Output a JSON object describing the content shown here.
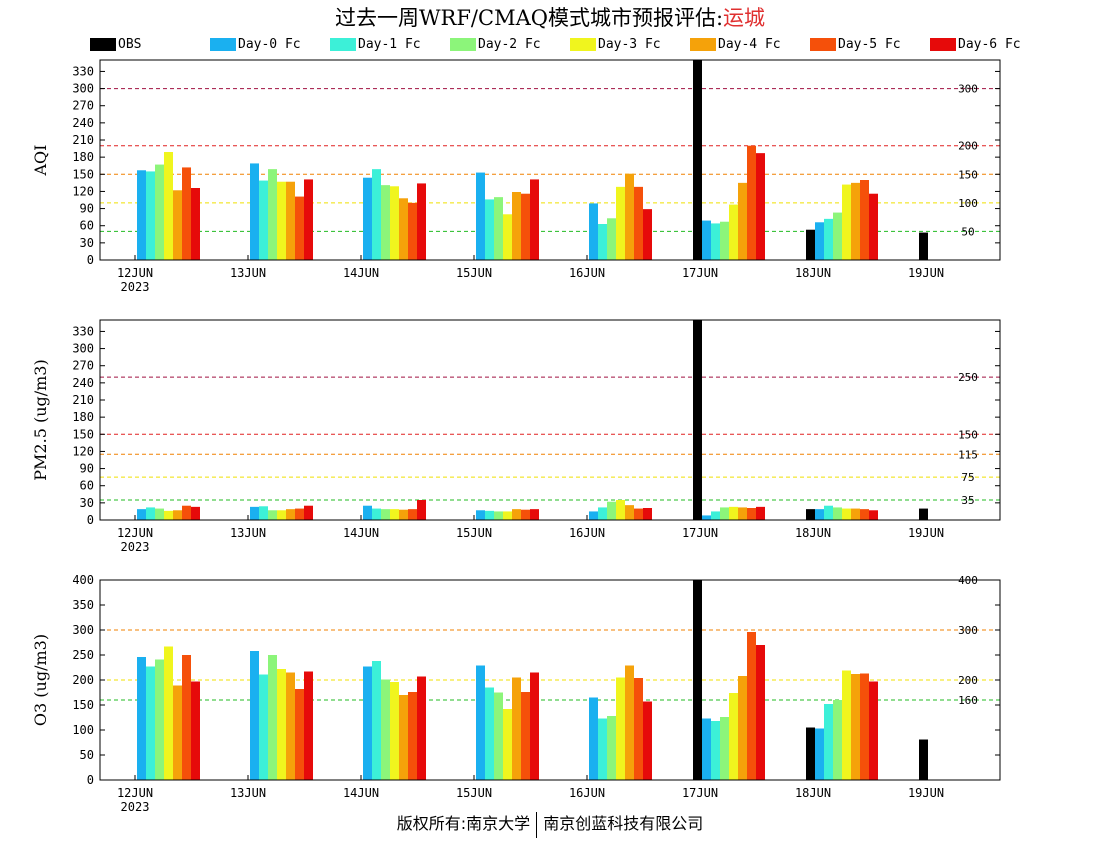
{
  "title": {
    "main": "过去一周WRF/CMAQ模式城市预报评估:",
    "city": "运城"
  },
  "footer": {
    "left": "版权所有:南京大学",
    "right": "南京创蓝科技有限公司"
  },
  "colors": {
    "OBS": "#000000",
    "Day-0 Fc": "#1ab0f0",
    "Day-1 Fc": "#3cf0d8",
    "Day-2 Fc": "#8cf57a",
    "Day-3 Fc": "#f0f51e",
    "Day-4 Fc": "#f5a20a",
    "Day-5 Fc": "#f5500a",
    "Day-6 Fc": "#e60a0a"
  },
  "chart_data": [
    {
      "type": "bar",
      "ylabel": "AQI",
      "ylim": [
        0,
        350
      ],
      "yticks": [
        0,
        30,
        60,
        90,
        120,
        150,
        180,
        210,
        240,
        270,
        300,
        330
      ],
      "categories": [
        "12JUN",
        "13JUN",
        "14JUN",
        "15JUN",
        "16JUN",
        "17JUN",
        "18JUN",
        "19JUN"
      ],
      "first_tick_sub": "2023",
      "thresholds": [
        {
          "value": 50,
          "label": "50",
          "color": "#22bb22"
        },
        {
          "value": 100,
          "label": "100",
          "color": "#f0e000"
        },
        {
          "value": 150,
          "label": "150",
          "color": "#f08000"
        },
        {
          "value": 200,
          "label": "200",
          "color": "#e02020"
        },
        {
          "value": 300,
          "label": "300",
          "color": "#a01040"
        }
      ],
      "series": [
        {
          "name": "OBS",
          "values": [
            null,
            null,
            null,
            null,
            null,
            350,
            53,
            48
          ]
        },
        {
          "name": "Day-0 Fc",
          "values": [
            157,
            169,
            144,
            153,
            99,
            69,
            66,
            null
          ]
        },
        {
          "name": "Day-1 Fc",
          "values": [
            155,
            139,
            159,
            106,
            63,
            64,
            72,
            null
          ]
        },
        {
          "name": "Day-2 Fc",
          "values": [
            167,
            159,
            131,
            110,
            73,
            67,
            83,
            null
          ]
        },
        {
          "name": "Day-3 Fc",
          "values": [
            189,
            137,
            129,
            80,
            128,
            97,
            132,
            null
          ]
        },
        {
          "name": "Day-4 Fc",
          "values": [
            122,
            137,
            108,
            119,
            151,
            135,
            135,
            null
          ]
        },
        {
          "name": "Day-5 Fc",
          "values": [
            162,
            111,
            100,
            116,
            128,
            200,
            140,
            null
          ]
        },
        {
          "name": "Day-6 Fc",
          "values": [
            126,
            141,
            134,
            141,
            89,
            187,
            116,
            null
          ]
        }
      ]
    },
    {
      "type": "bar",
      "ylabel": "PM2.5 (ug/m3)",
      "ylim": [
        0,
        350
      ],
      "yticks": [
        0,
        30,
        60,
        90,
        120,
        150,
        180,
        210,
        240,
        270,
        300,
        330
      ],
      "categories": [
        "12JUN",
        "13JUN",
        "14JUN",
        "15JUN",
        "16JUN",
        "17JUN",
        "18JUN",
        "19JUN"
      ],
      "first_tick_sub": "2023",
      "thresholds": [
        {
          "value": 35,
          "label": "35",
          "color": "#22bb22"
        },
        {
          "value": 75,
          "label": "75",
          "color": "#f0e000"
        },
        {
          "value": 115,
          "label": "115",
          "color": "#f08000"
        },
        {
          "value": 150,
          "label": "150",
          "color": "#e02020"
        },
        {
          "value": 250,
          "label": "250",
          "color": "#a01040"
        }
      ],
      "series": [
        {
          "name": "OBS",
          "values": [
            null,
            null,
            null,
            null,
            null,
            350,
            19,
            20
          ]
        },
        {
          "name": "Day-0 Fc",
          "values": [
            19,
            23,
            25,
            17,
            15,
            8,
            19,
            null
          ]
        },
        {
          "name": "Day-1 Fc",
          "values": [
            22,
            24,
            20,
            16,
            22,
            15,
            25,
            null
          ]
        },
        {
          "name": "Day-2 Fc",
          "values": [
            20,
            17,
            19,
            15,
            32,
            22,
            22,
            null
          ]
        },
        {
          "name": "Day-3 Fc",
          "values": [
            16,
            17,
            19,
            15,
            35,
            23,
            20,
            null
          ]
        },
        {
          "name": "Day-4 Fc",
          "values": [
            17,
            19,
            18,
            19,
            26,
            22,
            20,
            null
          ]
        },
        {
          "name": "Day-5 Fc",
          "values": [
            25,
            20,
            19,
            18,
            20,
            21,
            19,
            null
          ]
        },
        {
          "name": "Day-6 Fc",
          "values": [
            23,
            25,
            35,
            19,
            21,
            23,
            17,
            null
          ]
        }
      ]
    },
    {
      "type": "bar",
      "ylabel": "O3 (ug/m3)",
      "ylim": [
        0,
        400
      ],
      "yticks": [
        0,
        50,
        100,
        150,
        200,
        250,
        300,
        350,
        400
      ],
      "categories": [
        "12JUN",
        "13JUN",
        "14JUN",
        "15JUN",
        "16JUN",
        "17JUN",
        "18JUN",
        "19JUN"
      ],
      "first_tick_sub": "2023",
      "thresholds": [
        {
          "value": 160,
          "label": "160",
          "color": "#22bb22"
        },
        {
          "value": 200,
          "label": "200",
          "color": "#f0e000"
        },
        {
          "value": 300,
          "label": "300",
          "color": "#f08000"
        },
        {
          "value": 400,
          "label": "400",
          "color": "#e02020"
        }
      ],
      "series": [
        {
          "name": "OBS",
          "values": [
            null,
            null,
            null,
            null,
            null,
            400,
            105,
            81
          ]
        },
        {
          "name": "Day-0 Fc",
          "values": [
            246,
            258,
            227,
            229,
            165,
            123,
            103,
            null
          ]
        },
        {
          "name": "Day-1 Fc",
          "values": [
            227,
            211,
            238,
            185,
            123,
            118,
            152,
            null
          ]
        },
        {
          "name": "Day-2 Fc",
          "values": [
            241,
            250,
            201,
            175,
            128,
            126,
            160,
            null
          ]
        },
        {
          "name": "Day-3 Fc",
          "values": [
            267,
            222,
            196,
            142,
            205,
            174,
            219,
            null
          ]
        },
        {
          "name": "Day-4 Fc",
          "values": [
            189,
            215,
            170,
            205,
            229,
            208,
            212,
            null
          ]
        },
        {
          "name": "Day-5 Fc",
          "values": [
            250,
            182,
            176,
            176,
            204,
            296,
            213,
            null
          ]
        },
        {
          "name": "Day-6 Fc",
          "values": [
            197,
            217,
            207,
            215,
            157,
            270,
            197,
            null
          ]
        }
      ]
    }
  ]
}
